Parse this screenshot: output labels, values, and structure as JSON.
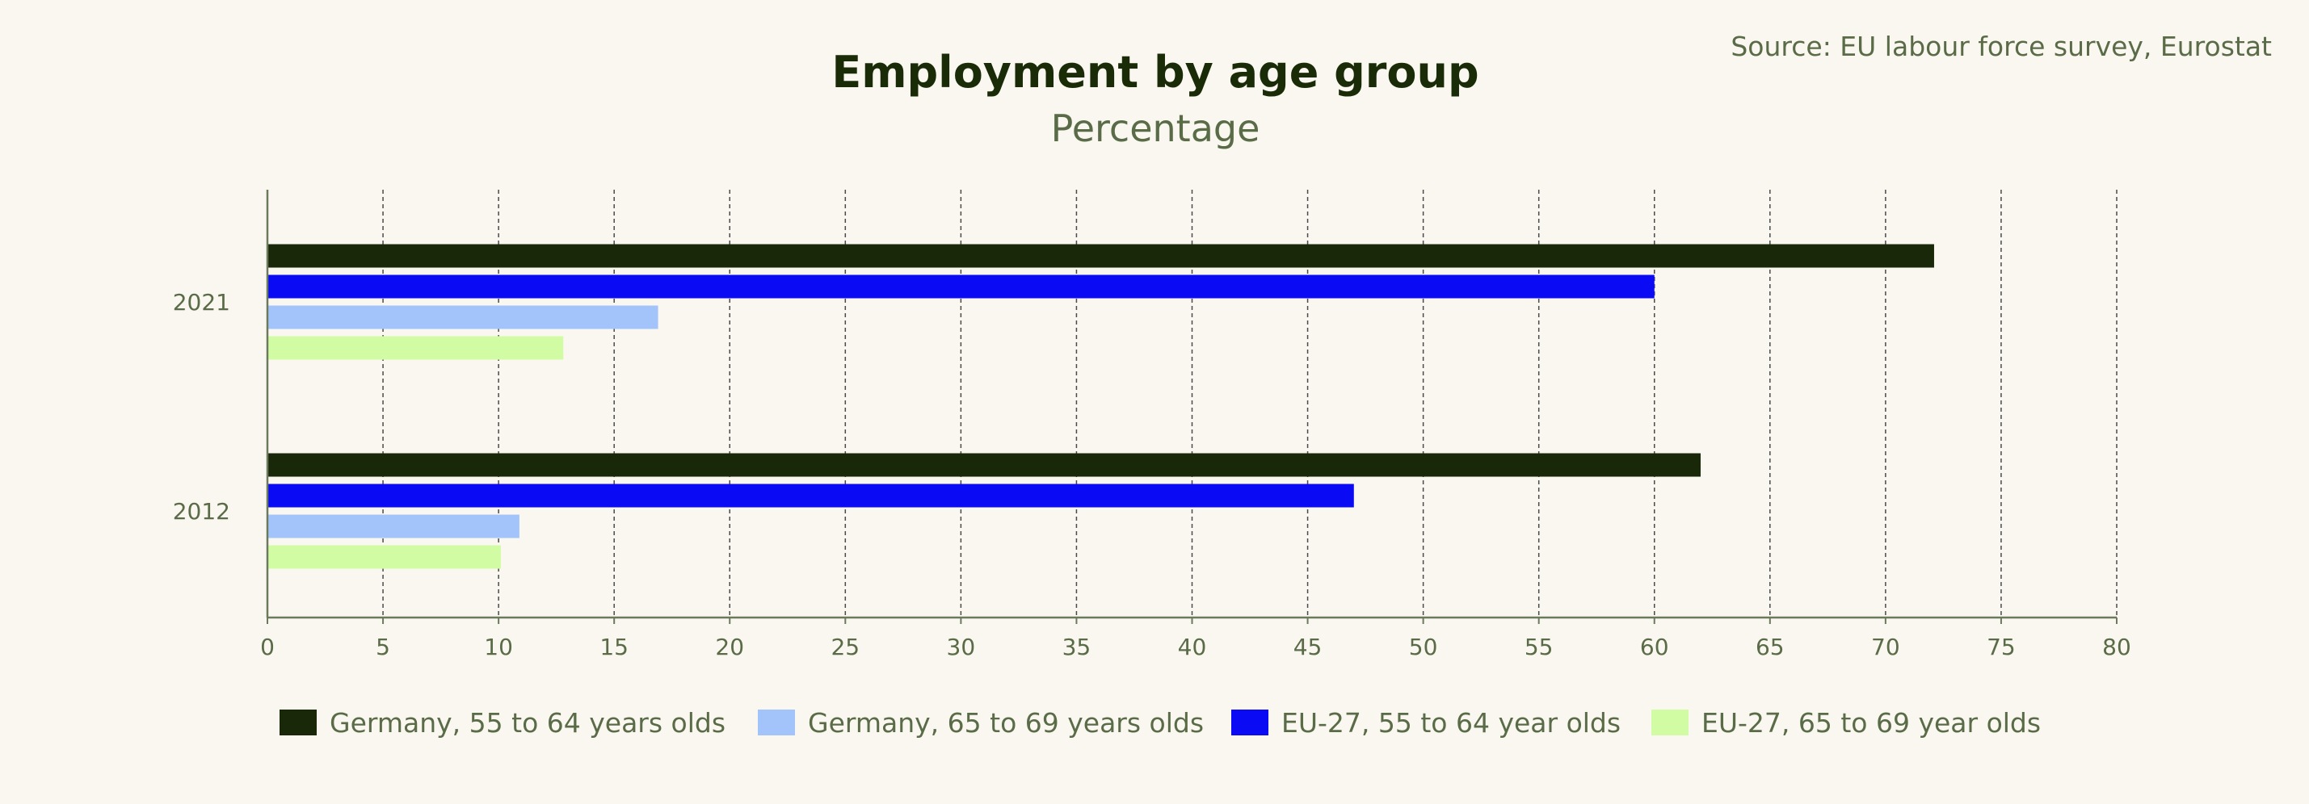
{
  "chart_data": {
    "type": "bar",
    "orientation": "horizontal",
    "title": "Employment by age group",
    "subtitle": "Percentage",
    "source": "Source: EU labour force survey, Eurostat",
    "categories": [
      "2021",
      "2012"
    ],
    "xlim": [
      0,
      80
    ],
    "xticks": [
      0,
      5,
      10,
      15,
      20,
      25,
      30,
      35,
      40,
      45,
      50,
      55,
      60,
      65,
      70,
      75,
      80
    ],
    "grid": "vertical dashed",
    "legend_position": "bottom",
    "series": [
      {
        "name": "Germany, 55 to 64 years olds",
        "color": "#182808",
        "values": [
          72.1,
          62.0
        ]
      },
      {
        "name": "EU-27, 55 to 64 year olds",
        "color": "#0a0af5",
        "values": [
          60.0,
          47.0
        ]
      },
      {
        "name": "Germany, 65 to 69 years olds",
        "color": "#a3c4fb",
        "values": [
          16.9,
          10.9
        ]
      },
      {
        "name": "EU-27, 65 to 69 year olds",
        "color": "#d2fca4",
        "values": [
          12.8,
          10.1
        ]
      }
    ],
    "legend_order": [
      0,
      2,
      1,
      3
    ]
  }
}
